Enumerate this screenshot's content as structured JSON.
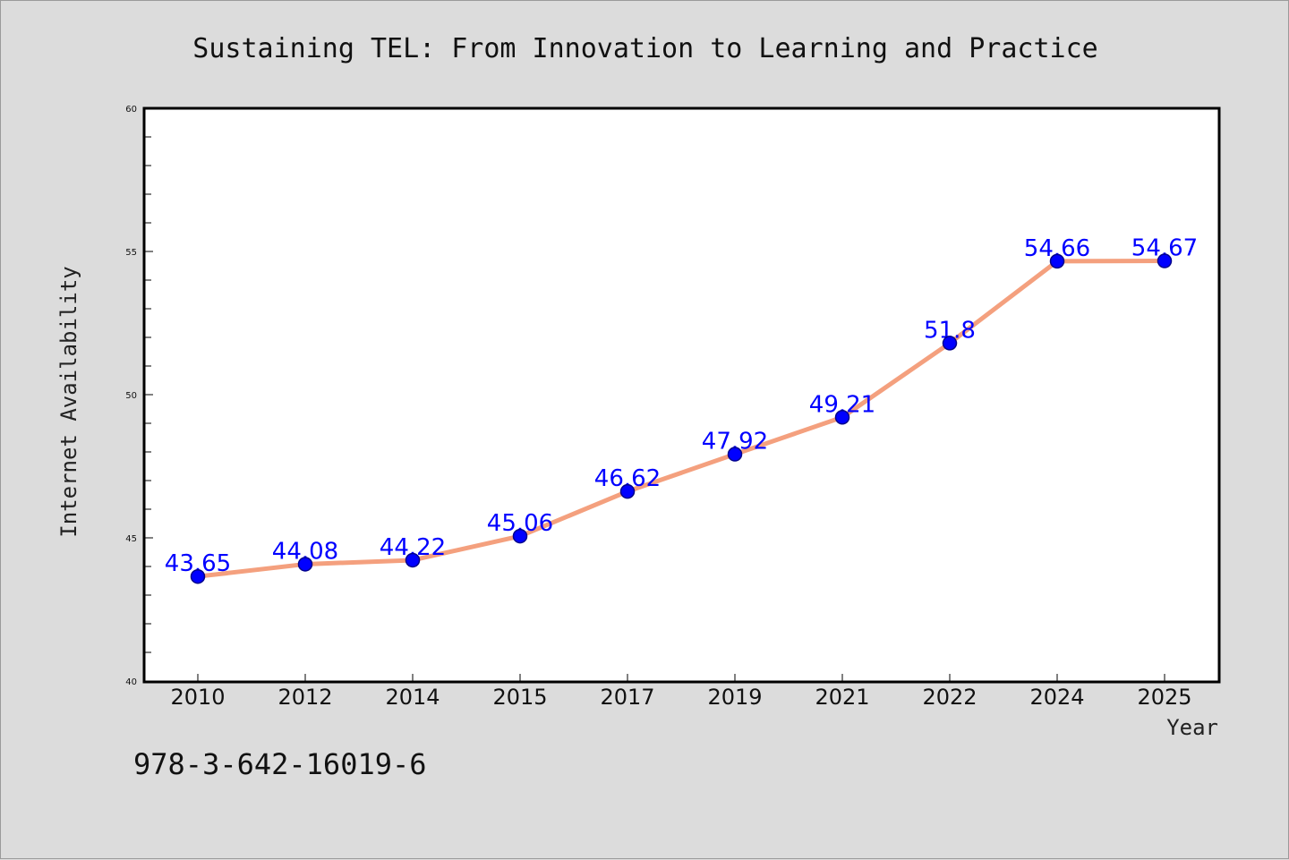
{
  "chart_data": {
    "type": "line",
    "title": "Sustaining TEL: From Innovation to Learning and Practice",
    "xlabel": "Year",
    "ylabel": "Internet Availability",
    "categories": [
      "2010",
      "2012",
      "2014",
      "2015",
      "2017",
      "2019",
      "2021",
      "2022",
      "2024",
      "2025"
    ],
    "series": [
      {
        "values": [
          43.65,
          44.08,
          44.22,
          45.06,
          46.62,
          47.92,
          49.21,
          51.8,
          54.66,
          54.67
        ],
        "data_labels": [
          "43.65",
          "44.08",
          "44.22",
          "45.06",
          "46.62",
          "47.92",
          "49.21",
          "51.8",
          "54.66",
          "54.67"
        ]
      }
    ],
    "ylim": [
      40,
      60
    ],
    "y_ticks": [
      "40",
      "45",
      "50",
      "55",
      "60"
    ],
    "grid": false,
    "colors": {
      "line": "#f4a07e",
      "marker": "#0000ff",
      "marker_edge": "#00008b",
      "data_label": "#0000ff",
      "background": "#dcdcdc",
      "plot_background": "#ffffff"
    }
  },
  "footer": {
    "isbn": "978-3-642-16019-6"
  }
}
